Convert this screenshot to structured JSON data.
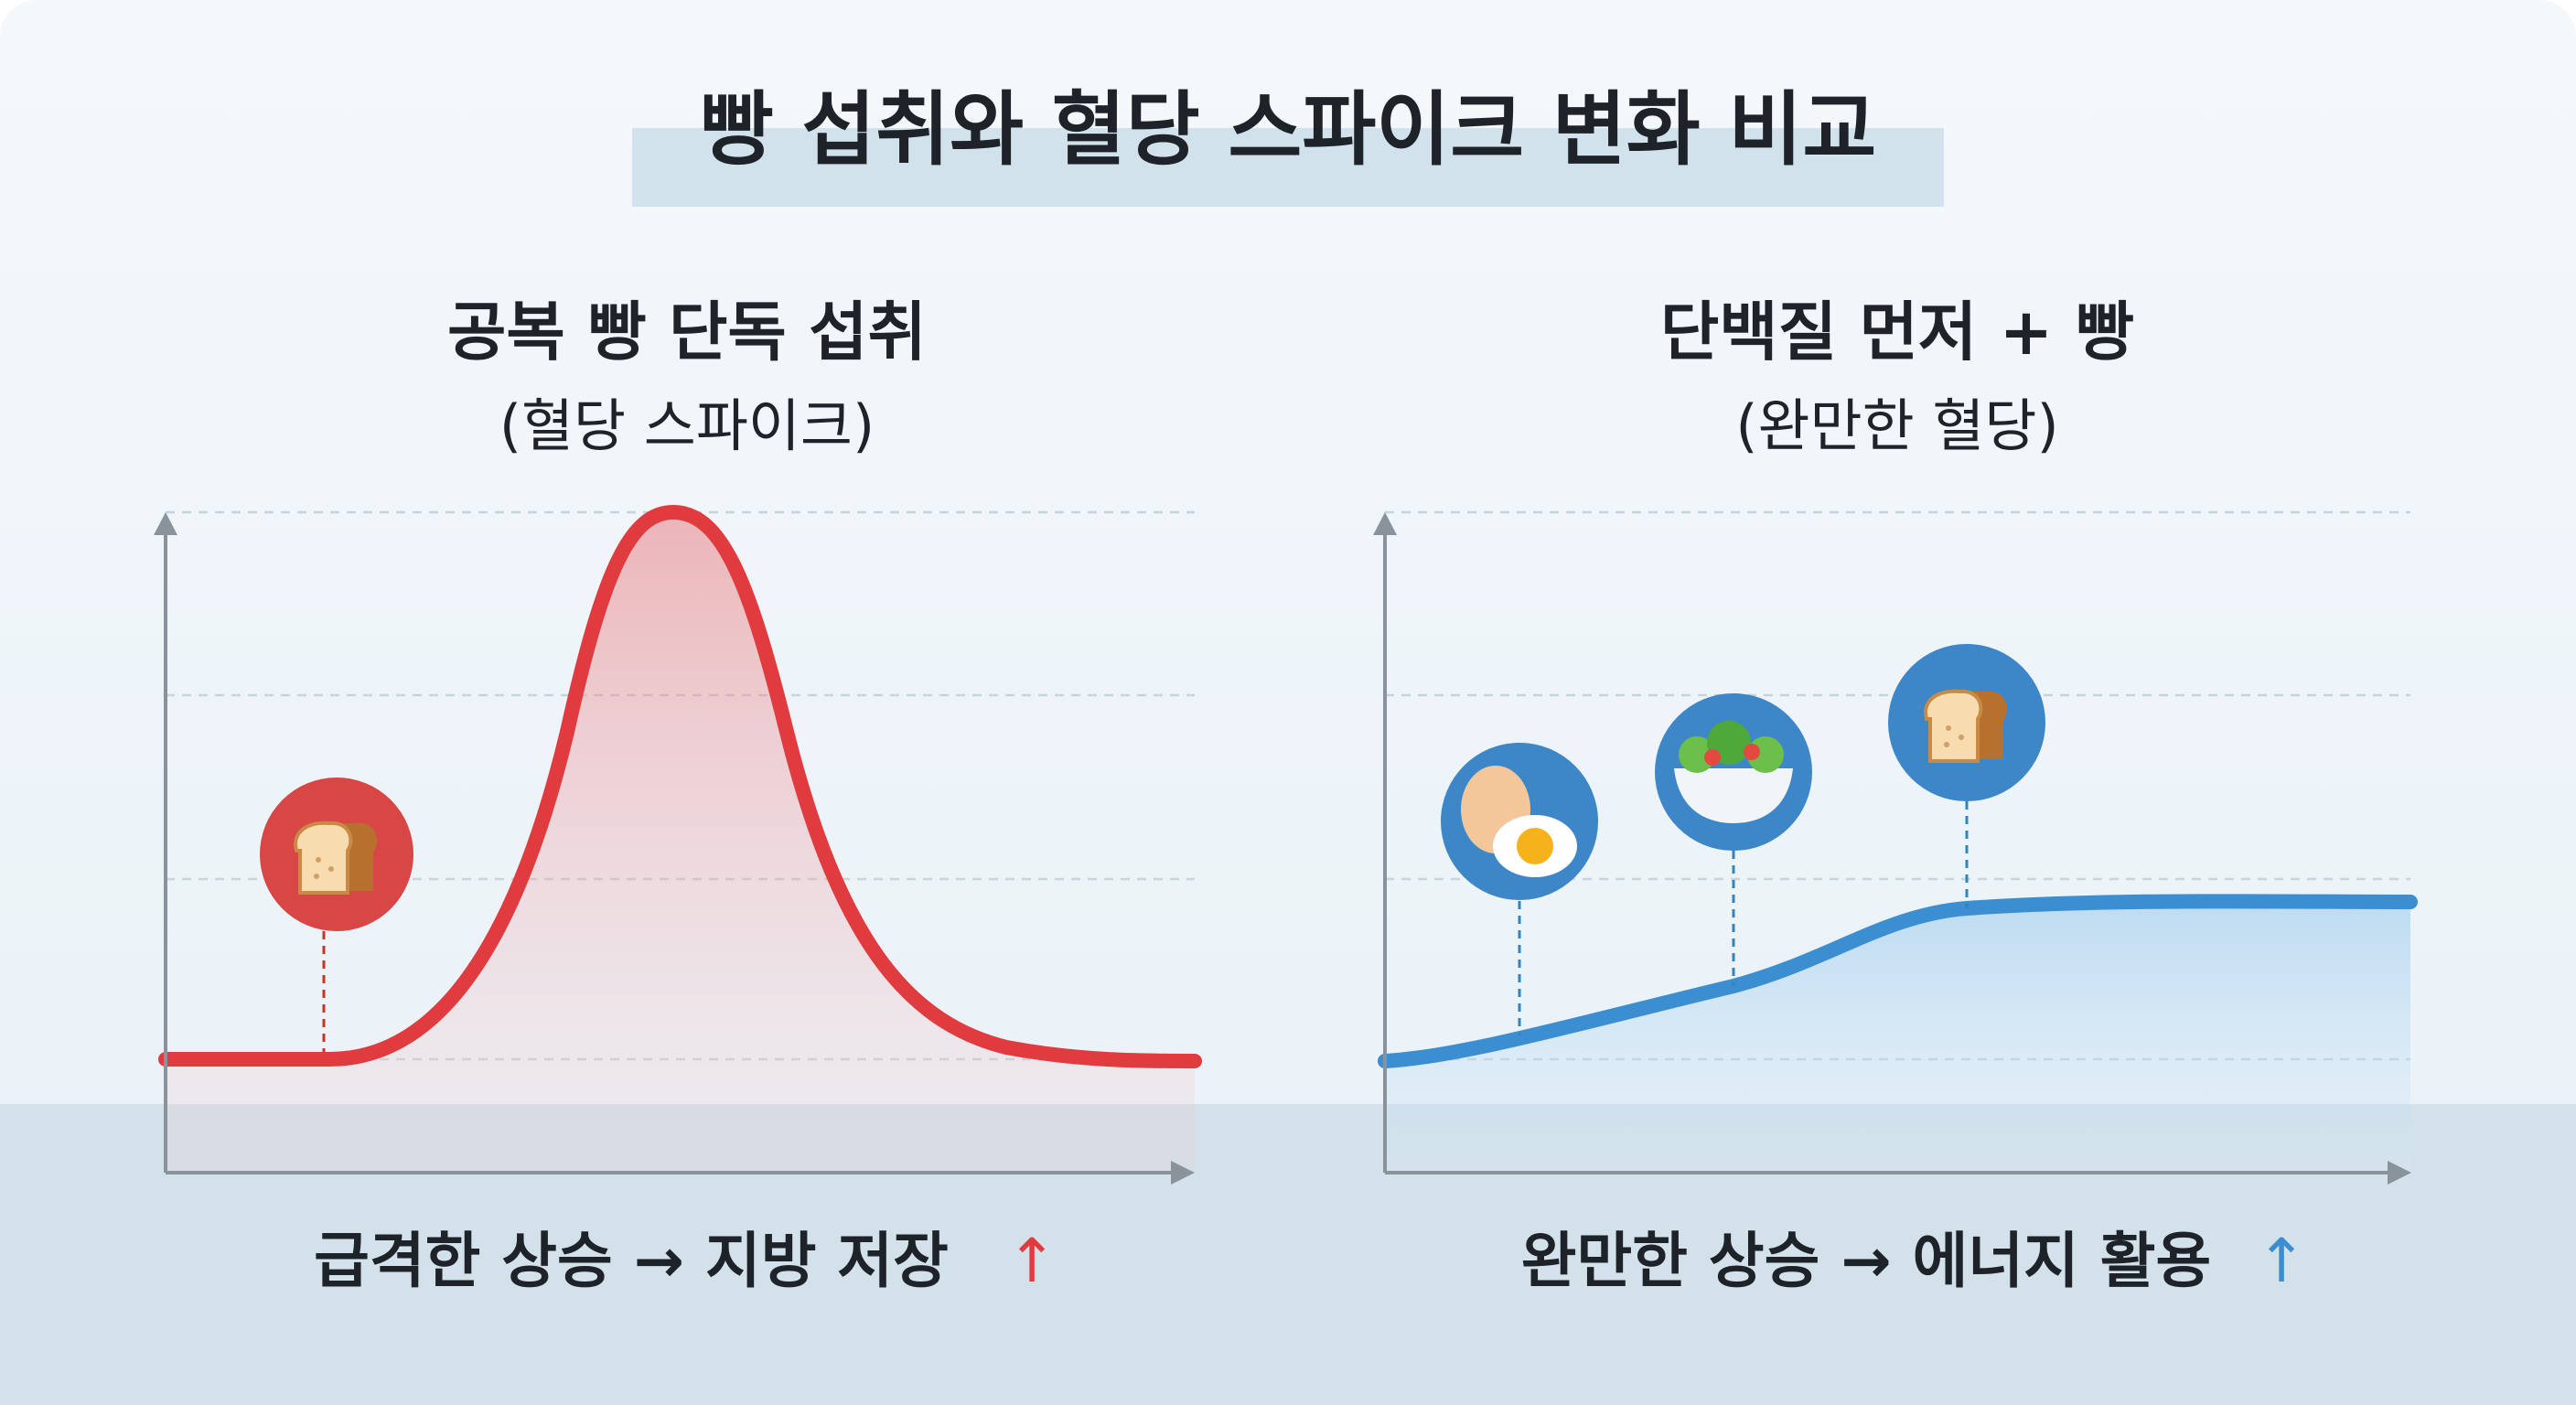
{
  "header": {
    "title": "빵 섭취와 혈당 스파이크 변화 비교"
  },
  "panels": [
    {
      "title": "공복 빵 단독 섭취",
      "subtitle": "(혈당 스파이크)",
      "caption": "급격한 상승 → 지방 저장",
      "arrow": "↑"
    },
    {
      "title": "단백질 먼저 + 빵",
      "subtitle": "(완만한 혈당)",
      "caption": "완만한 상승 → 에너지 활용",
      "arrow": "↑"
    }
  ]
}
